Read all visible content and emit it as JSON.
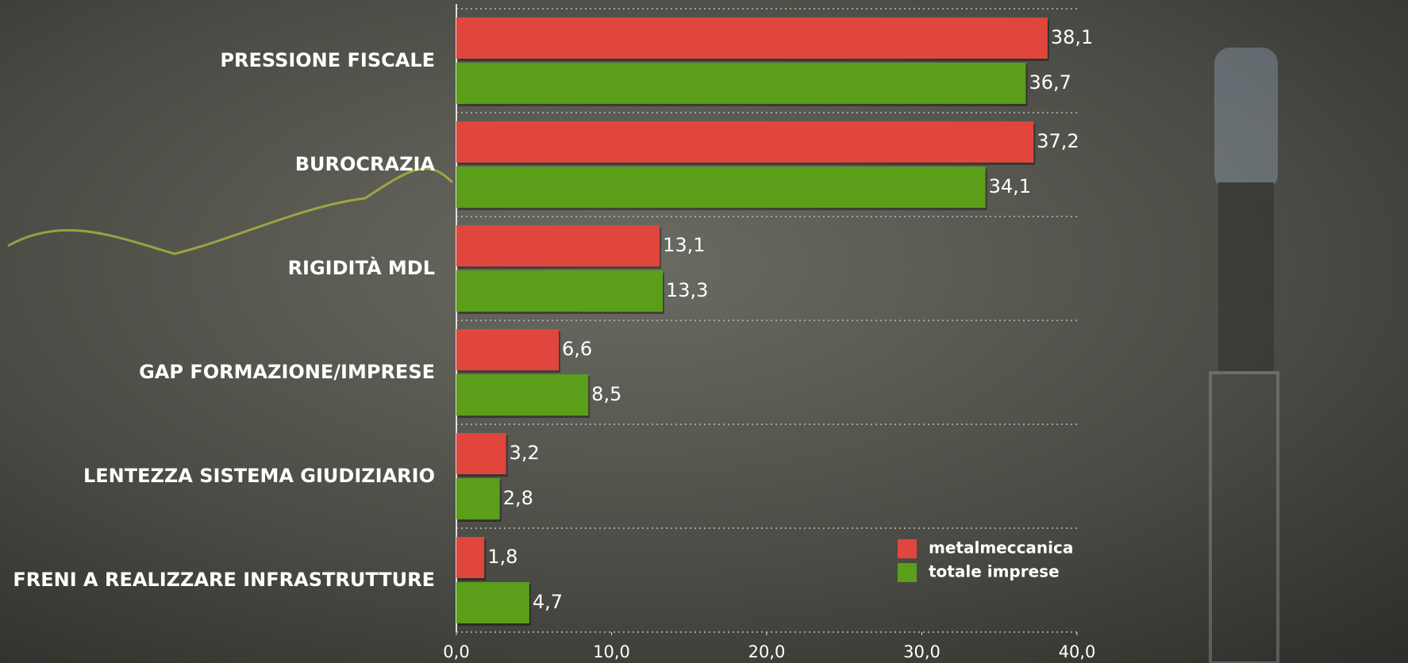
{
  "chart_data": {
    "type": "hbar",
    "categories": [
      "PRESSIONE FISCALE",
      "BUROCRAZIA",
      "RIGIDITÀ MDL",
      "GAP FORMAZIONE/IMPRESE",
      "LENTEZZA SISTEMA GIUDIZIARIO",
      "FRENI A REALIZZARE INFRASTRUTTURE"
    ],
    "series": [
      {
        "name": "metalmeccanica",
        "color": "#e0463c",
        "values": [
          38.1,
          37.2,
          13.1,
          6.6,
          3.2,
          1.8
        ],
        "value_labels": [
          "38,1",
          "37,2",
          "13,1",
          "6,6",
          "3,2",
          "1,8"
        ]
      },
      {
        "name": "totale imprese",
        "color": "#5a9e1a",
        "values": [
          36.7,
          34.1,
          13.3,
          8.5,
          2.8,
          4.7
        ],
        "value_labels": [
          "36,7",
          "34,1",
          "13,3",
          "8,5",
          "2,8",
          "4,7"
        ]
      }
    ],
    "xlim": [
      0,
      40
    ],
    "xticks": [
      {
        "value": 0,
        "label": "0,0"
      },
      {
        "value": 10,
        "label": "10,0"
      },
      {
        "value": 20,
        "label": "20,0"
      },
      {
        "value": 30,
        "label": "30,0"
      },
      {
        "value": 40,
        "label": "40,0"
      }
    ],
    "legend": "lower-right"
  }
}
